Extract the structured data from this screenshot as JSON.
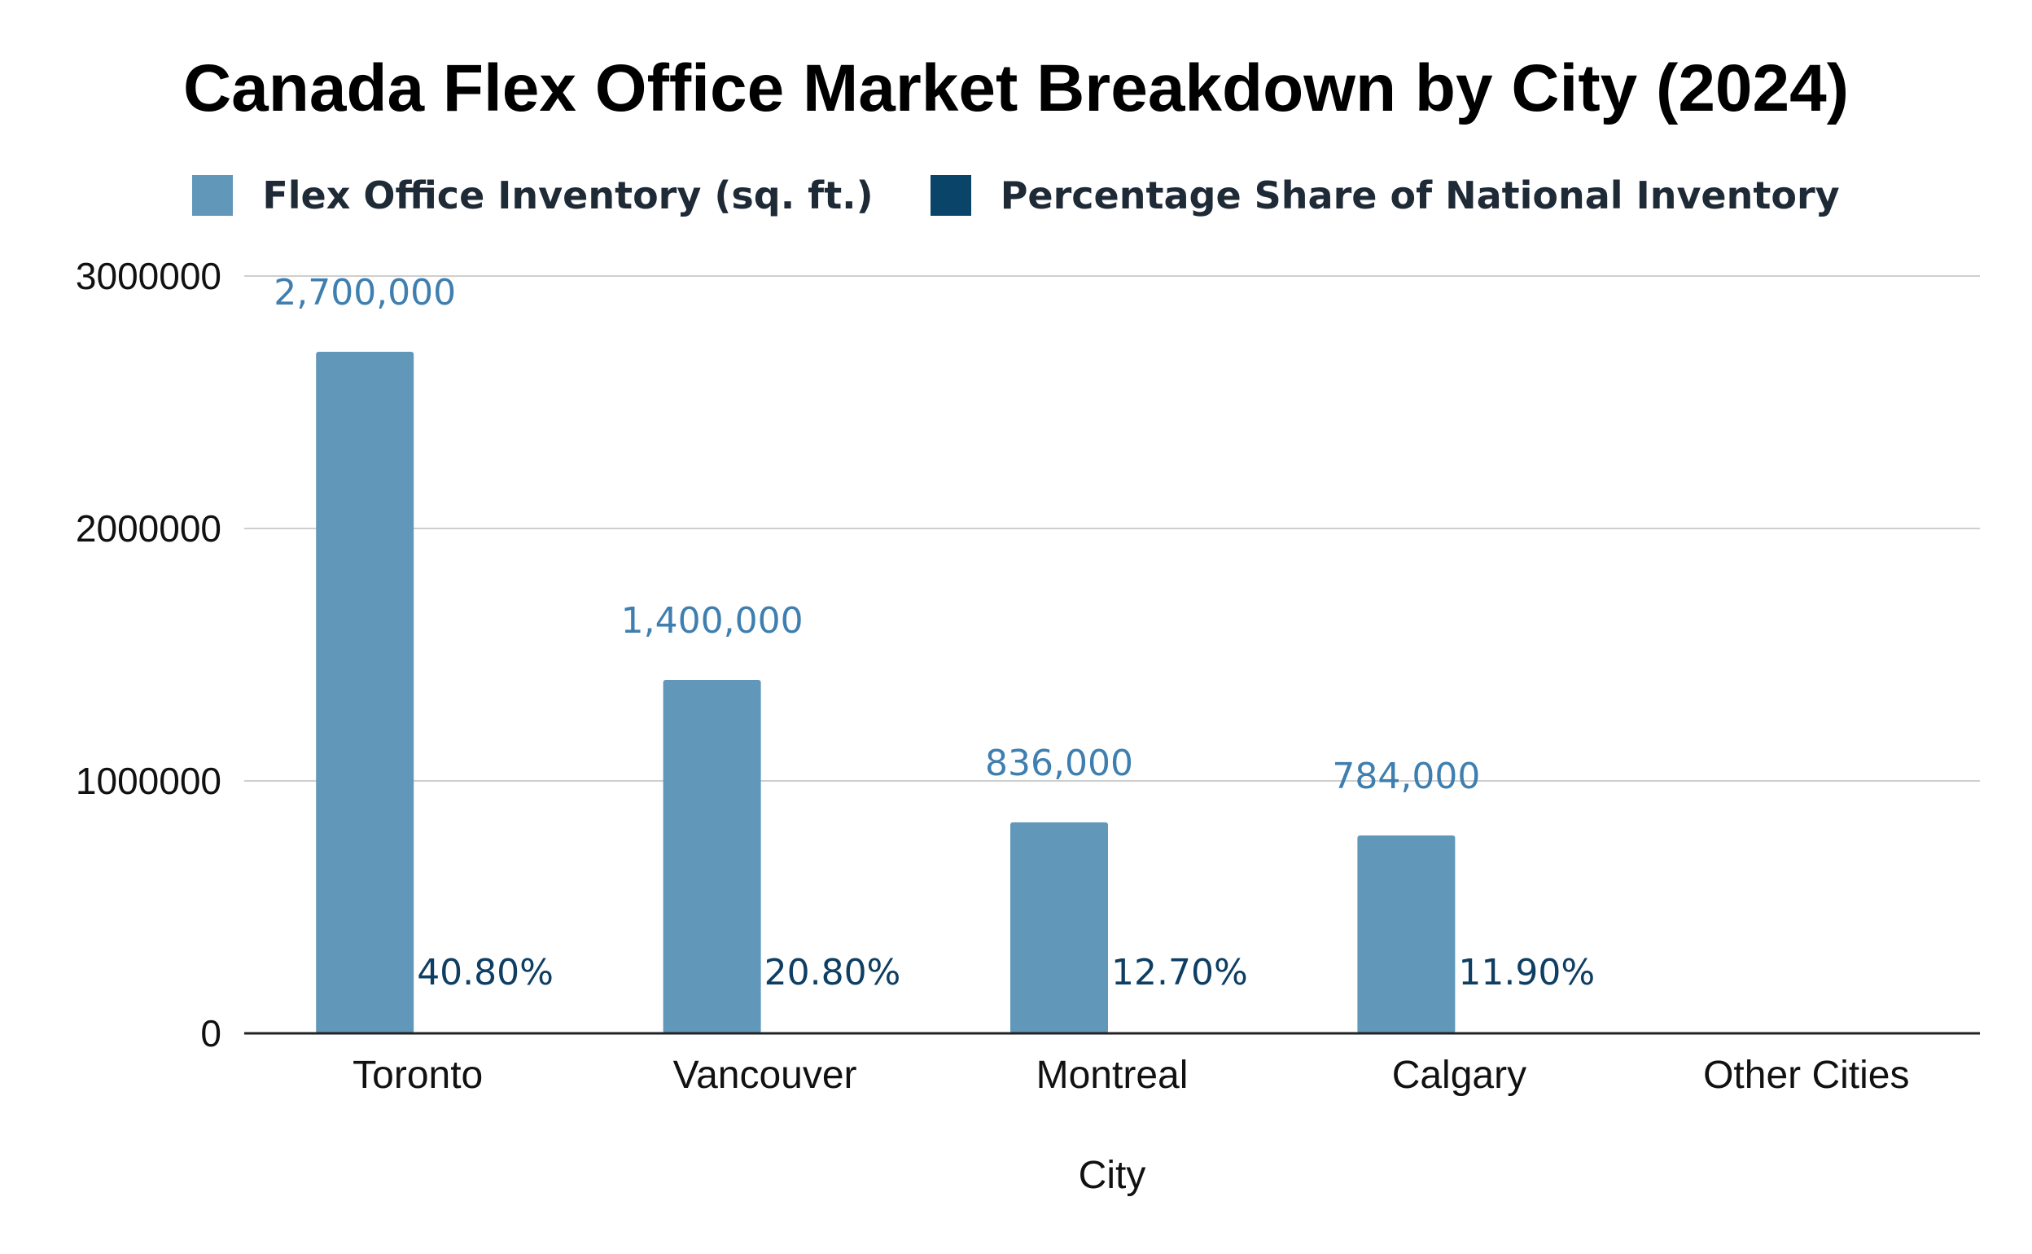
{
  "chart_data": {
    "type": "bar",
    "title": "Canada Flex Office Market Breakdown by City (2024)",
    "xlabel": "City",
    "ylabel": "",
    "categories": [
      "Toronto",
      "Vancouver",
      "Montreal",
      "Calgary",
      "Other Cities"
    ],
    "series": [
      {
        "name": "Flex Office Inventory (sq. ft.)",
        "color": "#6197b9",
        "values": [
          2700000,
          1400000,
          836000,
          784000,
          null
        ],
        "labels": [
          "2,700,000",
          "1,400,000",
          "836,000",
          "784,000",
          ""
        ]
      },
      {
        "name": "Percentage Share of National Inventory",
        "color": "#0a4469",
        "values": [
          40.8,
          20.8,
          12.7,
          11.9,
          null
        ],
        "labels": [
          "40.80%",
          "20.80%",
          "12.70%",
          "11.90%",
          ""
        ]
      }
    ],
    "ylim": [
      0,
      3000000
    ],
    "yticks": [
      0,
      1000000,
      2000000,
      3000000
    ],
    "ytick_labels": [
      "0",
      "1000000",
      "2000000",
      "3000000"
    ],
    "grid": true,
    "legend_position": "top-center"
  }
}
